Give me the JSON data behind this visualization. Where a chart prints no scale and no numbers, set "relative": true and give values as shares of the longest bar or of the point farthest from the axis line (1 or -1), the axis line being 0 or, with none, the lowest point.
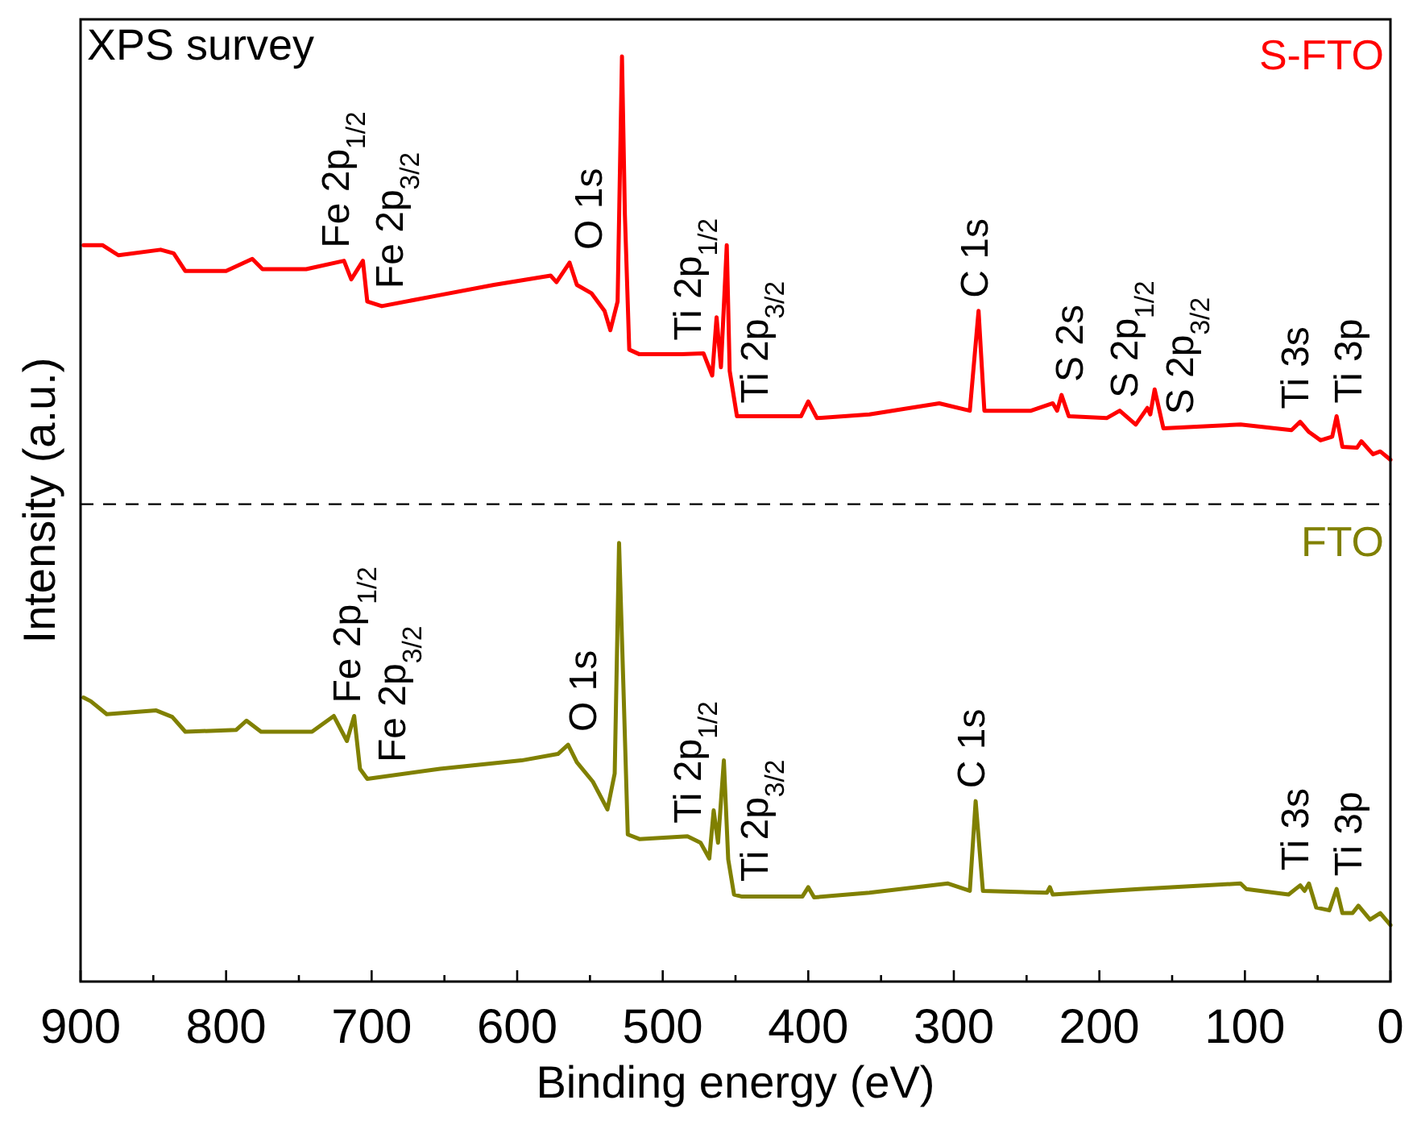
{
  "chart_data": {
    "type": "line",
    "title": "XPS survey",
    "xlabel": "Binding energy (eV)",
    "ylabel": "Intensity (a.u.)",
    "relative": true,
    "xlim": [
      900,
      0
    ],
    "xticks": [
      900,
      {
        "value": 850,
        "label": null
      },
      800,
      {
        "value": 750,
        "label": null
      },
      700,
      {
        "value": 650,
        "label": null
      },
      600,
      {
        "value": 550,
        "label": null
      },
      500,
      {
        "value": 450,
        "label": null
      },
      400,
      {
        "value": 350,
        "label": null
      },
      300,
      {
        "value": 250,
        "label": null
      },
      200,
      {
        "value": 150,
        "label": null
      },
      100,
      {
        "value": 50,
        "label": null
      },
      0
    ],
    "marker": "none",
    "line_style": "solid",
    "series": [
      {
        "name": "S-FTO",
        "color": "#ff0000",
        "x": [
          898,
          885,
          874,
          845,
          836,
          828,
          800,
          782,
          775,
          745,
          719,
          714,
          706,
          703,
          693,
          653,
          616,
          577,
          573,
          564,
          559,
          549,
          540,
          536,
          531,
          528,
          526,
          523,
          516,
          487,
          472,
          466,
          463,
          460,
          456,
          454,
          449,
          446,
          405,
          400,
          394,
          358,
          310,
          289,
          283,
          279,
          247,
          232,
          229,
          226,
          221,
          195,
          186,
          175,
          167,
          165,
          162,
          156,
          103,
          68,
          62,
          56,
          48,
          40,
          37,
          33,
          23,
          20,
          12,
          7,
          0
        ],
        "values": [
          0.796,
          0.796,
          0.785,
          0.791,
          0.787,
          0.768,
          0.768,
          0.781,
          0.77,
          0.77,
          0.779,
          0.759,
          0.779,
          0.735,
          0.73,
          0.742,
          0.753,
          0.763,
          0.756,
          0.777,
          0.753,
          0.744,
          0.725,
          0.704,
          0.735,
          1.0,
          0.829,
          0.683,
          0.678,
          0.678,
          0.679,
          0.655,
          0.718,
          0.664,
          0.796,
          0.66,
          0.611,
          0.611,
          0.611,
          0.627,
          0.609,
          0.613,
          0.625,
          0.617,
          0.725,
          0.617,
          0.617,
          0.625,
          0.617,
          0.634,
          0.611,
          0.609,
          0.617,
          0.602,
          0.62,
          0.613,
          0.64,
          0.598,
          0.602,
          0.596,
          0.605,
          0.594,
          0.585,
          0.589,
          0.611,
          0.578,
          0.577,
          0.584,
          0.57,
          0.573,
          0.564
        ]
      },
      {
        "name": "FTO",
        "color": "#808000",
        "x": [
          898,
          893,
          882,
          848,
          837,
          828,
          793,
          786,
          776,
          741,
          726,
          717,
          712,
          708,
          703,
          653,
          597,
          572,
          565,
          559,
          548,
          538,
          533,
          530,
          527,
          524,
          516,
          483,
          474,
          468,
          465,
          462,
          458,
          455,
          451,
          446,
          404,
          400,
          396,
          358,
          304,
          289,
          285,
          280,
          236,
          234,
          232,
          173,
          103,
          99,
          70,
          62,
          59,
          56,
          51,
          42,
          37,
          33,
          26,
          22,
          14,
          7,
          0
        ],
        "values": [
          0.307,
          0.303,
          0.289,
          0.293,
          0.286,
          0.27,
          0.272,
          0.282,
          0.27,
          0.27,
          0.287,
          0.26,
          0.287,
          0.23,
          0.219,
          0.23,
          0.239,
          0.246,
          0.256,
          0.237,
          0.216,
          0.186,
          0.225,
          0.474,
          0.318,
          0.159,
          0.154,
          0.157,
          0.15,
          0.133,
          0.185,
          0.15,
          0.239,
          0.132,
          0.094,
          0.092,
          0.092,
          0.102,
          0.091,
          0.096,
          0.106,
          0.098,
          0.195,
          0.098,
          0.096,
          0.102,
          0.094,
          0.1,
          0.106,
          0.1,
          0.094,
          0.104,
          0.098,
          0.106,
          0.08,
          0.077,
          0.1,
          0.074,
          0.074,
          0.082,
          0.067,
          0.074,
          0.061
        ]
      }
    ],
    "ref_lines": [
      {
        "axis": "y",
        "value": 0.516,
        "line_style": "dashed",
        "color": "#000000"
      }
    ],
    "annotations": [
      {
        "text": "Fe 2p$_{1/2}$",
        "x": 725,
        "y": 0.777
      },
      {
        "text": "Fe 2p$_{3/2}$",
        "x": 688,
        "y": 0.732
      },
      {
        "text": "O 1s",
        "x": 551,
        "y": 0.745
      },
      {
        "text": "Ti 2p$_{1/2}$",
        "x": 483,
        "y": 0.678
      },
      {
        "text": "Ti 2p$_{3/2}$",
        "x": 437,
        "y": 0.611
      },
      {
        "text": "C 1s",
        "x": 286,
        "y": 0.671
      },
      {
        "text": "S 2s",
        "x": 221,
        "y": 0.611
      },
      {
        "text": "S 2p$_{1/2}$",
        "x": 183,
        "y": 0.613
      },
      {
        "text": "S 2p$_{3/2}$",
        "x": 145,
        "y": 0.599
      },
      {
        "text": "Ti 3s",
        "x": 66,
        "y": 0.599
      },
      {
        "text": "Ti 3p",
        "x": 29,
        "y": 0.578
      },
      {
        "text": "Fe 2p$_{1/2}$",
        "x": 717,
        "y": 0.26
      },
      {
        "text": "Fe 2p$_{3/2}$",
        "x": 686,
        "y": 0.223
      },
      {
        "text": "O 1s",
        "x": 555,
        "y": 0.229
      },
      {
        "text": "Ti 2p$_{1/2}$",
        "x": 483,
        "y": 0.157
      },
      {
        "text": "Ti 2p$_{3/2}$",
        "x": 437,
        "y": 0.092
      },
      {
        "text": "C 1s",
        "x": 288,
        "y": 0.122
      },
      {
        "text": "Ti 3s",
        "x": 66,
        "y": 0.099
      },
      {
        "text": "Ti 3p",
        "x": 29,
        "y": 0.074
      }
    ]
  }
}
